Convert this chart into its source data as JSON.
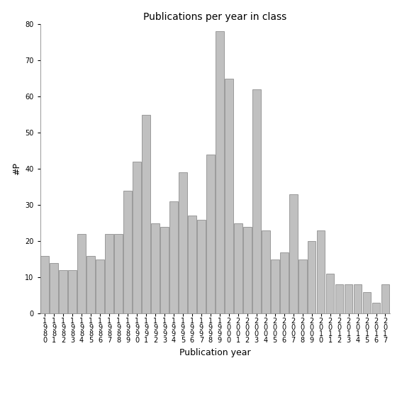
{
  "title": "Publications per year in class",
  "xlabel": "Publication year",
  "ylabel": "#P",
  "years": [
    "1980",
    "1981",
    "1982",
    "1983",
    "1984",
    "1985",
    "1986",
    "1987",
    "1988",
    "1989",
    "1990",
    "1991",
    "1992",
    "1993",
    "1994",
    "1995",
    "1996",
    "1997",
    "1998",
    "1999",
    "2000",
    "2001",
    "2002",
    "2003",
    "2004",
    "2005",
    "2006",
    "2007",
    "2008",
    "2009",
    "2010",
    "2011",
    "2012",
    "2013",
    "2014",
    "2015",
    "2016",
    "2017"
  ],
  "values": [
    16,
    14,
    12,
    12,
    22,
    16,
    15,
    22,
    22,
    34,
    42,
    55,
    25,
    24,
    31,
    39,
    27,
    26,
    44,
    78,
    65,
    25,
    24,
    62,
    23,
    15,
    17,
    33,
    15,
    20,
    23,
    11,
    8,
    8,
    8,
    6,
    3,
    8
  ],
  "bar_color": "#c0c0c0",
  "bar_edge_color": "#808080",
  "ylim": [
    0,
    80
  ],
  "yticks": [
    0,
    10,
    20,
    30,
    40,
    50,
    60,
    70,
    80
  ],
  "background_color": "#ffffff",
  "title_fontsize": 10,
  "label_fontsize": 9,
  "tick_fontsize": 7
}
